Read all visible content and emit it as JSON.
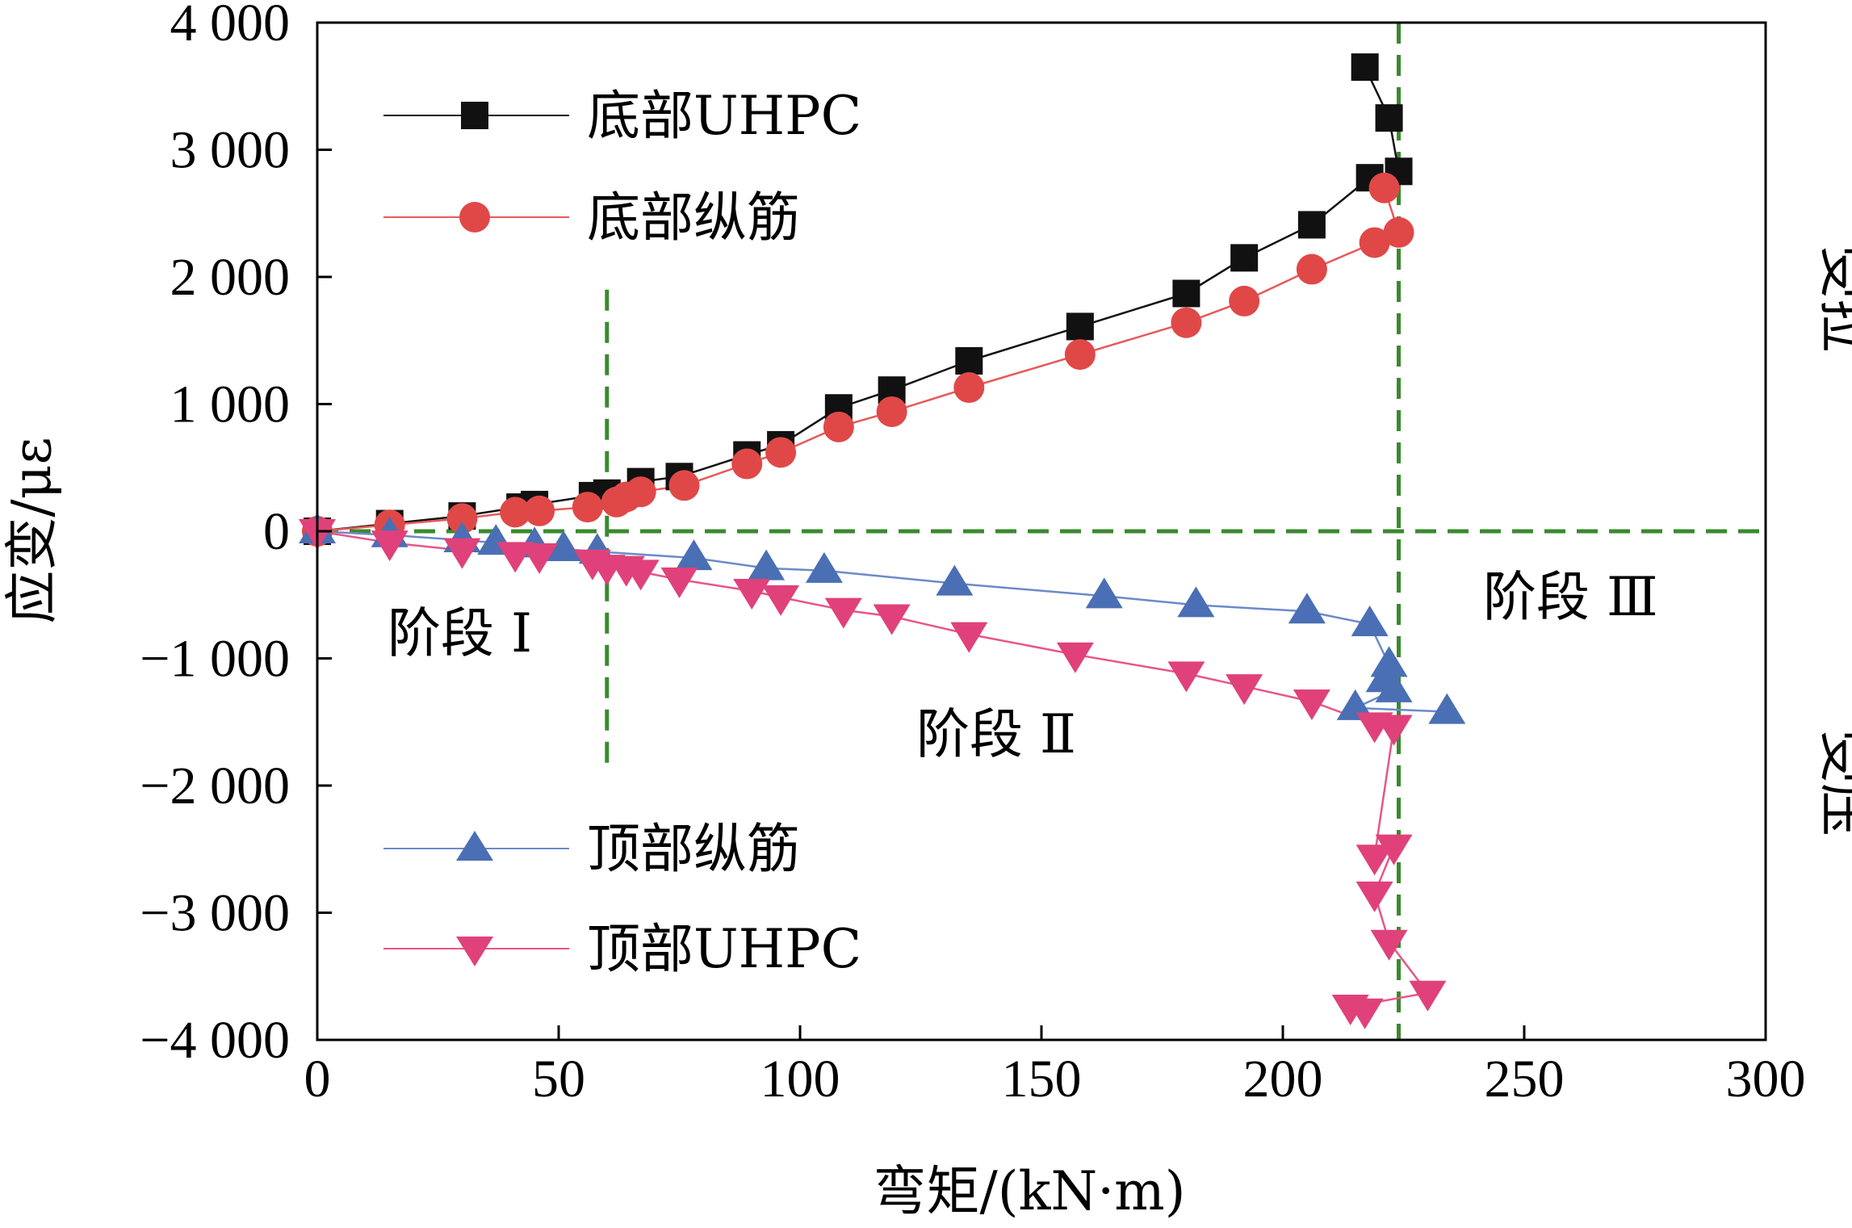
{
  "chart_data": {
    "type": "line",
    "xlabel": "弯矩/(kN·m)",
    "ylabel": "应变/με",
    "xlim": [
      0,
      300
    ],
    "ylim": [
      -4000,
      4000
    ],
    "x_ticks": [
      0,
      50,
      100,
      150,
      200,
      250,
      300
    ],
    "x_tick_labels": [
      "0",
      "50",
      "100",
      "150",
      "200",
      "250",
      "300"
    ],
    "y_ticks": [
      4000,
      3000,
      2000,
      1000,
      0,
      -1000,
      -2000,
      -3000,
      -4000
    ],
    "y_tick_labels": [
      "4 000",
      "3 000",
      "2 000",
      "1 000",
      "0",
      "−1 000",
      "−2 000",
      "−3 000",
      "−4 000"
    ],
    "grid": false,
    "legend_placement": "top-left and bottom-left",
    "reference_lines": {
      "x": [
        60,
        224
      ],
      "y": [
        0
      ],
      "color": "#3a8a2e"
    },
    "annotations": {
      "stage1": "阶段 Ⅰ",
      "stage2": "阶段 Ⅱ",
      "stage3": "阶段 Ⅲ",
      "tension": "受拉",
      "compression": "受压"
    },
    "series": [
      {
        "name": "底部UHPC",
        "marker": "square",
        "color": "#000000",
        "marker_fill": "#111111",
        "line_color": "#111111",
        "x": [
          0,
          15,
          30,
          42,
          45,
          57,
          60,
          67,
          75,
          89,
          96,
          108,
          119,
          135,
          158,
          180,
          192,
          206,
          218,
          224,
          222,
          217
        ],
        "y": [
          0,
          60,
          120,
          190,
          210,
          280,
          300,
          390,
          430,
          600,
          680,
          970,
          1110,
          1340,
          1610,
          1870,
          2150,
          2410,
          2780,
          2830,
          3250,
          3650
        ]
      },
      {
        "name": "底部纵筋",
        "marker": "circle",
        "color": "#e04848",
        "marker_fill": "#e04848",
        "line_color": "#e8585a",
        "x": [
          0,
          15,
          30,
          41,
          46,
          56,
          62,
          64,
          67,
          76,
          89,
          96,
          108,
          119,
          135,
          158,
          180,
          192,
          206,
          219,
          224,
          221
        ],
        "y": [
          0,
          50,
          100,
          150,
          160,
          190,
          230,
          270,
          310,
          360,
          530,
          620,
          820,
          940,
          1130,
          1390,
          1640,
          1810,
          2060,
          2270,
          2350,
          2700
        ]
      },
      {
        "name": "顶部纵筋",
        "marker": "triangle-up",
        "color": "#4a6fb5",
        "marker_fill": "#4a6fb5",
        "line_color": "#6b8ac9",
        "x": [
          0,
          15,
          30,
          37,
          45,
          51,
          58,
          78,
          93,
          105,
          132,
          163,
          182,
          205,
          218,
          222,
          221,
          223,
          215,
          234
        ],
        "y": [
          0,
          -30,
          -70,
          -90,
          -110,
          -140,
          -160,
          -210,
          -290,
          -310,
          -410,
          -510,
          -580,
          -630,
          -730,
          -1050,
          -1170,
          -1250,
          -1390,
          -1420
        ]
      },
      {
        "name": "顶部UHPC",
        "marker": "triangle-down",
        "color": "#e0417a",
        "marker_fill": "#e0417a",
        "line_color": "#e8558a",
        "x": [
          0,
          15,
          30,
          41,
          46,
          57,
          60,
          64,
          67,
          75,
          90,
          96,
          109,
          119,
          135,
          157,
          180,
          192,
          206,
          219,
          223,
          219,
          223,
          219,
          222,
          230,
          214,
          217
        ],
        "y": [
          0,
          -90,
          -150,
          -180,
          -190,
          -240,
          -280,
          -290,
          -320,
          -380,
          -470,
          -520,
          -620,
          -670,
          -810,
          -970,
          -1120,
          -1220,
          -1340,
          -1520,
          -1540,
          -2560,
          -2480,
          -2850,
          -3230,
          -3630,
          -3740,
          -3770
        ]
      }
    ]
  }
}
